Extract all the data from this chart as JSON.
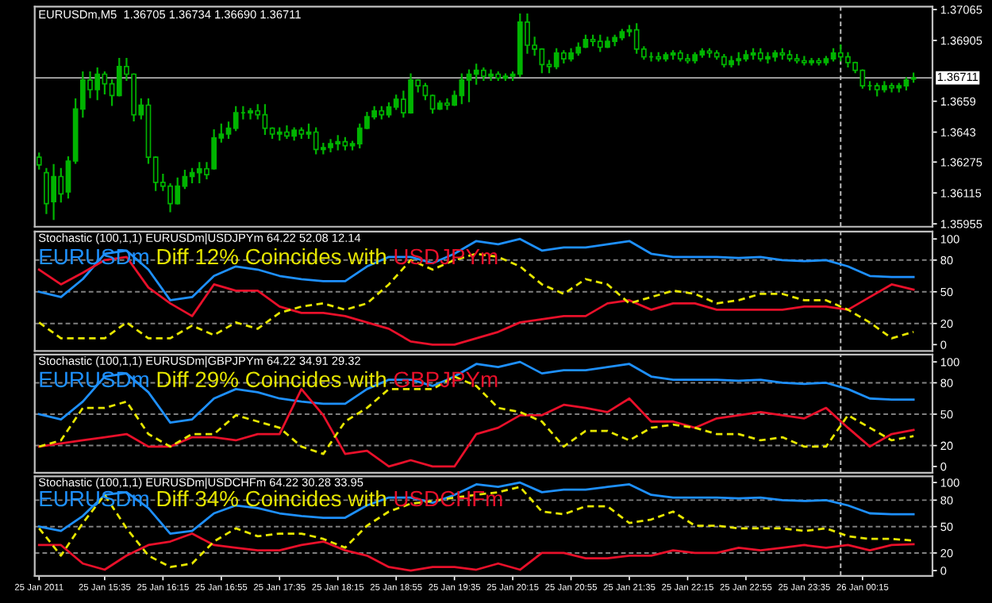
{
  "chart_data": [
    {
      "type": "candlestick",
      "title": "EURUSDm,M5  1.36705 1.36734 1.36690 1.36711",
      "color": "#00b400",
      "tick_labels": "y",
      "x": [
        "2011-01-25T14:50",
        "2011-01-25T14:55",
        "2011-01-25T15:00",
        "2011-01-25T15:05",
        "2011-01-25T15:10",
        "2011-01-25T15:15",
        "2011-01-25T15:20",
        "2011-01-25T15:25",
        "2011-01-25T15:30",
        "2011-01-25T15:35",
        "2011-01-25T15:40",
        "2011-01-25T15:45",
        "2011-01-25T15:50",
        "2011-01-25T15:55",
        "2011-01-25T16:00",
        "2011-01-25T16:05",
        "2011-01-25T16:10",
        "2011-01-25T16:15",
        "2011-01-25T16:20",
        "2011-01-25T16:25",
        "2011-01-25T16:30",
        "2011-01-25T16:35",
        "2011-01-25T16:40",
        "2011-01-25T16:45",
        "2011-01-25T16:50",
        "2011-01-25T16:55",
        "2011-01-25T17:00",
        "2011-01-25T17:05",
        "2011-01-25T17:10",
        "2011-01-25T17:15",
        "2011-01-25T17:20",
        "2011-01-25T17:25",
        "2011-01-25T17:30",
        "2011-01-25T17:35",
        "2011-01-25T17:40",
        "2011-01-25T17:45",
        "2011-01-25T17:50",
        "2011-01-25T17:55",
        "2011-01-25T18:00",
        "2011-01-25T18:05",
        "2011-01-25T18:10",
        "2011-01-25T18:15",
        "2011-01-25T18:20",
        "2011-01-25T18:25",
        "2011-01-25T18:30",
        "2011-01-25T18:35",
        "2011-01-25T18:40",
        "2011-01-25T18:45",
        "2011-01-25T18:50",
        "2011-01-25T18:55",
        "2011-01-25T19:00",
        "2011-01-25T19:05",
        "2011-01-25T19:10",
        "2011-01-25T19:15",
        "2011-01-25T19:20",
        "2011-01-25T19:25",
        "2011-01-25T19:30",
        "2011-01-25T19:35",
        "2011-01-25T19:40",
        "2011-01-25T19:45",
        "2011-01-25T19:50",
        "2011-01-25T19:55",
        "2011-01-25T20:00",
        "2011-01-25T20:05",
        "2011-01-25T20:10",
        "2011-01-25T20:15",
        "2011-01-25T20:20",
        "2011-01-25T20:25",
        "2011-01-25T20:30",
        "2011-01-25T20:35",
        "2011-01-25T20:40",
        "2011-01-25T20:45",
        "2011-01-25T20:50",
        "2011-01-25T20:55",
        "2011-01-25T21:00",
        "2011-01-25T21:05",
        "2011-01-25T21:10",
        "2011-01-25T21:15",
        "2011-01-25T21:20",
        "2011-01-25T21:25",
        "2011-01-25T21:30",
        "2011-01-25T21:35",
        "2011-01-25T21:40",
        "2011-01-25T21:45",
        "2011-01-25T21:50",
        "2011-01-25T21:55",
        "2011-01-25T22:00",
        "2011-01-25T22:05",
        "2011-01-25T22:10",
        "2011-01-25T22:15",
        "2011-01-25T22:20",
        "2011-01-25T22:25",
        "2011-01-25T22:30",
        "2011-01-25T22:35",
        "2011-01-25T22:40",
        "2011-01-25T22:45",
        "2011-01-25T22:50",
        "2011-01-25T22:55",
        "2011-01-25T23:00",
        "2011-01-25T23:05",
        "2011-01-25T23:10",
        "2011-01-25T23:15",
        "2011-01-25T23:20",
        "2011-01-25T23:25",
        "2011-01-25T23:30",
        "2011-01-25T23:35",
        "2011-01-25T23:40",
        "2011-01-25T23:45",
        "2011-01-25T23:50",
        "2011-01-25T23:55",
        "2011-01-26T00:00",
        "2011-01-26T00:05",
        "2011-01-26T00:10",
        "2011-01-26T00:15",
        "2011-01-26T00:20",
        "2011-01-26T00:25",
        "2011-01-26T00:30",
        "2011-01-26T00:35",
        "2011-01-26T00:40",
        "2011-01-26T00:45",
        "2011-01-26T00:50"
      ],
      "ohlc": [
        [
          1.363,
          1.3632,
          1.3624,
          1.3626
        ],
        [
          1.3622,
          1.3624,
          1.3601,
          1.3606
        ],
        [
          1.3607,
          1.3626,
          1.3598,
          1.362
        ],
        [
          1.362,
          1.3624,
          1.3607,
          1.3611
        ],
        [
          1.3612,
          1.363,
          1.3609,
          1.3628
        ],
        [
          1.3628,
          1.366,
          1.3627,
          1.3655
        ],
        [
          1.3655,
          1.3674,
          1.3651,
          1.367
        ],
        [
          1.367,
          1.3674,
          1.3661,
          1.3665
        ],
        [
          1.3665,
          1.3676,
          1.366,
          1.3673
        ],
        [
          1.3673,
          1.3674,
          1.3663,
          1.3668
        ],
        [
          1.3668,
          1.367,
          1.3657,
          1.3662
        ],
        [
          1.3662,
          1.3681,
          1.3662,
          1.3677
        ],
        [
          1.3677,
          1.3681,
          1.367,
          1.3673
        ],
        [
          1.3673,
          1.3673,
          1.3649,
          1.3652
        ],
        [
          1.3652,
          1.366,
          1.365,
          1.3657
        ],
        [
          1.3657,
          1.366,
          1.3627,
          1.363
        ],
        [
          1.363,
          1.363,
          1.3613,
          1.3617
        ],
        [
          1.3617,
          1.3621,
          1.3613,
          1.3615
        ],
        [
          1.3615,
          1.3616,
          1.3602,
          1.3606
        ],
        [
          1.3606,
          1.3619,
          1.3606,
          1.3615
        ],
        [
          1.3615,
          1.3623,
          1.3614,
          1.362
        ],
        [
          1.362,
          1.3624,
          1.3617,
          1.3622
        ],
        [
          1.3622,
          1.3627,
          1.3617,
          1.3624
        ],
        [
          1.3624,
          1.3627,
          1.3619,
          1.3621
        ],
        [
          1.3624,
          1.3644,
          1.3624,
          1.364
        ],
        [
          1.364,
          1.3647,
          1.3638,
          1.3642
        ],
        [
          1.3642,
          1.3648,
          1.364,
          1.3645
        ],
        [
          1.3645,
          1.3656,
          1.3644,
          1.3653
        ],
        [
          1.3653,
          1.3656,
          1.365,
          1.3653
        ],
        [
          1.3653,
          1.3655,
          1.365,
          1.3654
        ],
        [
          1.3654,
          1.3657,
          1.365,
          1.3652
        ],
        [
          1.3652,
          1.3657,
          1.3642,
          1.3645
        ],
        [
          1.3645,
          1.3645,
          1.364,
          1.3642
        ],
        [
          1.3642,
          1.3645,
          1.3639,
          1.3643
        ],
        [
          1.3643,
          1.3646,
          1.364,
          1.3641
        ],
        [
          1.3641,
          1.3645,
          1.3639,
          1.3644
        ],
        [
          1.3644,
          1.3645,
          1.364,
          1.3642
        ],
        [
          1.3642,
          1.3647,
          1.364,
          1.3643
        ],
        [
          1.3643,
          1.3645,
          1.3632,
          1.3634
        ],
        [
          1.3634,
          1.3637,
          1.3632,
          1.3635
        ],
        [
          1.3635,
          1.3639,
          1.3633,
          1.3637
        ],
        [
          1.3637,
          1.3641,
          1.3634,
          1.3638
        ],
        [
          1.3638,
          1.364,
          1.3634,
          1.3636
        ],
        [
          1.3636,
          1.3638,
          1.3634,
          1.3637
        ],
        [
          1.3637,
          1.3647,
          1.3635,
          1.3645
        ],
        [
          1.3645,
          1.3653,
          1.3645,
          1.3651
        ],
        [
          1.3651,
          1.3656,
          1.365,
          1.3654
        ],
        [
          1.3654,
          1.3656,
          1.365,
          1.3652
        ],
        [
          1.3652,
          1.3658,
          1.3651,
          1.3656
        ],
        [
          1.3656,
          1.3662,
          1.3655,
          1.366
        ],
        [
          1.366,
          1.3664,
          1.3651,
          1.3653
        ],
        [
          1.3653,
          1.3673,
          1.3653,
          1.367
        ],
        [
          1.367,
          1.367,
          1.3664,
          1.3667
        ],
        [
          1.3667,
          1.3668,
          1.366,
          1.3662
        ],
        [
          1.3662,
          1.3662,
          1.3653,
          1.3655
        ],
        [
          1.3655,
          1.3659,
          1.3655,
          1.3658
        ],
        [
          1.3658,
          1.366,
          1.3655,
          1.3657
        ],
        [
          1.3657,
          1.3664,
          1.3657,
          1.3662
        ],
        [
          1.3662,
          1.3673,
          1.3658,
          1.367
        ],
        [
          1.367,
          1.3675,
          1.3659,
          1.3673
        ],
        [
          1.3673,
          1.3678,
          1.3668,
          1.3675
        ],
        [
          1.3675,
          1.3676,
          1.367,
          1.3672
        ],
        [
          1.3672,
          1.3675,
          1.367,
          1.3673
        ],
        [
          1.3673,
          1.3674,
          1.367,
          1.3671
        ],
        [
          1.3671,
          1.3673,
          1.367,
          1.3672
        ],
        [
          1.3672,
          1.3674,
          1.367,
          1.3673
        ],
        [
          1.3673,
          1.3704,
          1.3672,
          1.37
        ],
        [
          1.37,
          1.3704,
          1.3684,
          1.3688
        ],
        [
          1.3688,
          1.3692,
          1.3683,
          1.3686
        ],
        [
          1.3686,
          1.3686,
          1.3674,
          1.3678
        ],
        [
          1.3678,
          1.368,
          1.3674,
          1.3677
        ],
        [
          1.3677,
          1.3686,
          1.3676,
          1.3684
        ],
        [
          1.3684,
          1.3685,
          1.3679,
          1.3681
        ],
        [
          1.3681,
          1.3686,
          1.368,
          1.3684
        ],
        [
          1.3684,
          1.3689,
          1.3683,
          1.3687
        ],
        [
          1.3687,
          1.3693,
          1.3687,
          1.3691
        ],
        [
          1.3691,
          1.3693,
          1.3688,
          1.369
        ],
        [
          1.369,
          1.3693,
          1.3685,
          1.3687
        ],
        [
          1.3687,
          1.3692,
          1.3687,
          1.369
        ],
        [
          1.369,
          1.3693,
          1.3688,
          1.3692
        ],
        [
          1.3692,
          1.3696,
          1.3691,
          1.3695
        ],
        [
          1.3695,
          1.3698,
          1.3693,
          1.3696
        ],
        [
          1.3696,
          1.3699,
          1.3684,
          1.3686
        ],
        [
          1.3686,
          1.3687,
          1.3681,
          1.3682
        ],
        [
          1.3682,
          1.3684,
          1.368,
          1.3682
        ],
        [
          1.3682,
          1.3684,
          1.368,
          1.3681
        ],
        [
          1.3681,
          1.3684,
          1.368,
          1.3683
        ],
        [
          1.3683,
          1.3685,
          1.3681,
          1.3684
        ],
        [
          1.3684,
          1.3685,
          1.368,
          1.3681
        ],
        [
          1.3681,
          1.3683,
          1.3679,
          1.368
        ],
        [
          1.368,
          1.3684,
          1.3679,
          1.3683
        ],
        [
          1.3683,
          1.3686,
          1.3682,
          1.3685
        ],
        [
          1.3685,
          1.3686,
          1.3682,
          1.3684
        ],
        [
          1.3684,
          1.3685,
          1.3681,
          1.3682
        ],
        [
          1.3682,
          1.3683,
          1.3677,
          1.3678
        ],
        [
          1.3678,
          1.3682,
          1.3677,
          1.368
        ],
        [
          1.368,
          1.3684,
          1.3678,
          1.3681
        ],
        [
          1.3681,
          1.3685,
          1.368,
          1.3683
        ],
        [
          1.3683,
          1.3686,
          1.3681,
          1.3684
        ],
        [
          1.3684,
          1.3686,
          1.368,
          1.3681
        ],
        [
          1.3681,
          1.3684,
          1.3679,
          1.3682
        ],
        [
          1.3682,
          1.3685,
          1.368,
          1.3684
        ],
        [
          1.3684,
          1.3686,
          1.3681,
          1.3683
        ],
        [
          1.3683,
          1.3685,
          1.368,
          1.3681
        ],
        [
          1.3681,
          1.3683,
          1.3679,
          1.368
        ],
        [
          1.368,
          1.3682,
          1.3678,
          1.3679
        ],
        [
          1.3679,
          1.3681,
          1.3678,
          1.368
        ],
        [
          1.368,
          1.3681,
          1.3678,
          1.3679
        ],
        [
          1.3679,
          1.3682,
          1.3678,
          1.3681
        ],
        [
          1.3681,
          1.3686,
          1.368,
          1.3684
        ],
        [
          1.3684,
          1.3688,
          1.368,
          1.3682
        ],
        [
          1.3682,
          1.3684,
          1.3677,
          1.3679
        ],
        [
          1.3679,
          1.3679,
          1.3674,
          1.3675
        ],
        [
          1.3675,
          1.3675,
          1.3666,
          1.3667
        ],
        [
          1.3667,
          1.3669,
          1.3665,
          1.3667
        ],
        [
          1.3667,
          1.3668,
          1.3662,
          1.3665
        ],
        [
          1.3665,
          1.3669,
          1.3664,
          1.3667
        ],
        [
          1.3667,
          1.3668,
          1.3664,
          1.3666
        ],
        [
          1.3666,
          1.3668,
          1.3664,
          1.3667
        ],
        [
          1.3667,
          1.3671,
          1.3665,
          1.367
        ],
        [
          1.36705,
          1.36734,
          1.3669,
          1.36711
        ]
      ],
      "xlim": [
        "2011-01-25T14:47",
        "2011-01-26T01:03"
      ],
      "ylim": [
        1.3594,
        1.3708
      ],
      "yticks": [
        1.37065,
        1.36905,
        1.3659,
        1.3643,
        1.36275,
        1.36115,
        1.35955
      ],
      "ref_lines": [
        {
          "axis": "y",
          "value": 1.36711,
          "label": "1.36711",
          "color": "#b0b0b0"
        },
        {
          "axis": "x",
          "value": "2011-01-26T00:00",
          "color": "#c0c0c0",
          "line_style": "dashed"
        }
      ]
    },
    {
      "type": "line",
      "title": "Stochastic (100,1,1) EURUSDm|USDJPYm 64.22 52.08 12.14",
      "subtitle": "Diff 12% Coincides with",
      "tick_labels": "y",
      "x": [
        "2011-01-25T14:50",
        "2011-01-25T15:05",
        "2011-01-25T15:20",
        "2011-01-25T15:35",
        "2011-01-25T15:50",
        "2011-01-25T16:05",
        "2011-01-25T16:20",
        "2011-01-25T16:35",
        "2011-01-25T16:50",
        "2011-01-25T17:05",
        "2011-01-25T17:20",
        "2011-01-25T17:35",
        "2011-01-25T17:50",
        "2011-01-25T18:05",
        "2011-01-25T18:20",
        "2011-01-25T18:35",
        "2011-01-25T18:50",
        "2011-01-25T19:05",
        "2011-01-25T19:20",
        "2011-01-25T19:35",
        "2011-01-25T19:50",
        "2011-01-25T20:05",
        "2011-01-25T20:20",
        "2011-01-25T20:35",
        "2011-01-25T20:50",
        "2011-01-25T21:05",
        "2011-01-25T21:20",
        "2011-01-25T21:35",
        "2011-01-25T21:50",
        "2011-01-25T22:05",
        "2011-01-25T22:20",
        "2011-01-25T22:35",
        "2011-01-25T22:50",
        "2011-01-25T23:05",
        "2011-01-25T23:20",
        "2011-01-25T23:35",
        "2011-01-25T23:50",
        "2011-01-26T00:05",
        "2011-01-26T00:20",
        "2011-01-26T00:35",
        "2011-01-26T00:50"
      ],
      "series": [
        {
          "name": "EURUSDm",
          "color": "#1e90ff",
          "line_style": "solid",
          "values": [
            50,
            45,
            62,
            86,
            89,
            71,
            42,
            45,
            65,
            74,
            71,
            65,
            62,
            60,
            60,
            74,
            83,
            83,
            77,
            86,
            98,
            95,
            100,
            89,
            92,
            92,
            95,
            98,
            86,
            83,
            83,
            83,
            82,
            83,
            80,
            79,
            80,
            74,
            65,
            64,
            64
          ]
        },
        {
          "name": "USDJPYm",
          "color": "#e8102a",
          "line_style": "solid",
          "values": [
            71,
            57,
            68,
            80,
            83,
            54,
            39,
            27,
            57,
            51,
            51,
            36,
            30,
            30,
            27,
            21,
            15,
            3,
            0,
            0,
            6,
            12,
            21,
            24,
            27,
            27,
            39,
            42,
            33,
            39,
            39,
            33,
            33,
            33,
            33,
            36,
            36,
            33,
            45,
            57,
            52
          ]
        },
        {
          "color": "#e6e600",
          "line_style": "dashed",
          "values": [
            21,
            6,
            6,
            6,
            21,
            6,
            6,
            18,
            9,
            21,
            15,
            30,
            36,
            39,
            33,
            39,
            57,
            80,
            71,
            80,
            86,
            83,
            74,
            57,
            48,
            62,
            57,
            39,
            45,
            51,
            48,
            39,
            42,
            48,
            48,
            42,
            42,
            33,
            21,
            6,
            12
          ]
        }
      ],
      "xlim": [
        "2011-01-25T14:47",
        "2011-01-26T01:03"
      ],
      "ylim": [
        -6,
        107
      ],
      "yticks": [
        0,
        20,
        50,
        80,
        100
      ],
      "ref_lines": [
        {
          "axis": "y",
          "value": 20,
          "color": "#808080",
          "line_style": "dashed"
        },
        {
          "axis": "y",
          "value": 50,
          "color": "#808080",
          "line_style": "dashed"
        },
        {
          "axis": "y",
          "value": 80,
          "color": "#808080",
          "line_style": "dashed"
        },
        {
          "axis": "x",
          "value": "2011-01-26T00:00",
          "color": "#c0c0c0",
          "line_style": "dashed"
        }
      ]
    },
    {
      "type": "line",
      "title": "Stochastic (100,1,1) EURUSDm|GBPJPYm 64.22 34.91 29.32",
      "subtitle": "Diff 29% Coincides with",
      "tick_labels": "y",
      "x": [
        "2011-01-25T14:50",
        "2011-01-25T15:05",
        "2011-01-25T15:20",
        "2011-01-25T15:35",
        "2011-01-25T15:50",
        "2011-01-25T16:05",
        "2011-01-25T16:20",
        "2011-01-25T16:35",
        "2011-01-25T16:50",
        "2011-01-25T17:05",
        "2011-01-25T17:20",
        "2011-01-25T17:35",
        "2011-01-25T17:50",
        "2011-01-25T18:05",
        "2011-01-25T18:20",
        "2011-01-25T18:35",
        "2011-01-25T18:50",
        "2011-01-25T19:05",
        "2011-01-25T19:20",
        "2011-01-25T19:35",
        "2011-01-25T19:50",
        "2011-01-25T20:05",
        "2011-01-25T20:20",
        "2011-01-25T20:35",
        "2011-01-25T20:50",
        "2011-01-25T21:05",
        "2011-01-25T21:20",
        "2011-01-25T21:35",
        "2011-01-25T21:50",
        "2011-01-25T22:05",
        "2011-01-25T22:20",
        "2011-01-25T22:35",
        "2011-01-25T22:50",
        "2011-01-25T23:05",
        "2011-01-25T23:20",
        "2011-01-25T23:35",
        "2011-01-25T23:50",
        "2011-01-26T00:05",
        "2011-01-26T00:20",
        "2011-01-26T00:35",
        "2011-01-26T00:50"
      ],
      "series": [
        {
          "name": "EURUSDm",
          "color": "#1e90ff",
          "line_style": "solid",
          "values": [
            50,
            45,
            62,
            86,
            89,
            71,
            42,
            45,
            65,
            74,
            71,
            65,
            62,
            60,
            60,
            74,
            83,
            83,
            77,
            86,
            98,
            95,
            100,
            89,
            92,
            92,
            95,
            98,
            86,
            83,
            83,
            83,
            82,
            83,
            80,
            79,
            80,
            74,
            65,
            64,
            64
          ]
        },
        {
          "name": "GBPJPYm",
          "color": "#e8102a",
          "line_style": "solid",
          "values": [
            19,
            22,
            25,
            28,
            31,
            19,
            19,
            28,
            28,
            25,
            31,
            31,
            74,
            49,
            12,
            15,
            0,
            6,
            0,
            0,
            31,
            37,
            49,
            49,
            59,
            56,
            52,
            65,
            43,
            43,
            37,
            46,
            49,
            52,
            49,
            46,
            56,
            37,
            19,
            31,
            35
          ]
        },
        {
          "color": "#e6e600",
          "line_style": "dashed",
          "values": [
            19,
            25,
            56,
            56,
            62,
            31,
            19,
            31,
            31,
            49,
            43,
            37,
            19,
            12,
            43,
            56,
            74,
            74,
            74,
            86,
            77,
            56,
            52,
            43,
            19,
            34,
            34,
            25,
            37,
            40,
            37,
            31,
            31,
            25,
            28,
            19,
            19,
            49,
            37,
            25,
            29
          ]
        }
      ],
      "xlim": [
        "2011-01-25T14:47",
        "2011-01-26T01:03"
      ],
      "ylim": [
        -6,
        107
      ],
      "yticks": [
        0,
        20,
        50,
        80,
        100
      ],
      "ref_lines": [
        {
          "axis": "y",
          "value": 20,
          "color": "#808080",
          "line_style": "dashed"
        },
        {
          "axis": "y",
          "value": 50,
          "color": "#808080",
          "line_style": "dashed"
        },
        {
          "axis": "y",
          "value": 80,
          "color": "#808080",
          "line_style": "dashed"
        },
        {
          "axis": "x",
          "value": "2011-01-26T00:00",
          "color": "#c0c0c0",
          "line_style": "dashed"
        }
      ]
    },
    {
      "type": "line",
      "title": "Stochastic (100,1,1) EURUSDm|USDCHFm 64.22 30.28 33.95",
      "subtitle": "Diff 34% Coincides with",
      "x": [
        "2011-01-25T14:50",
        "2011-01-25T15:05",
        "2011-01-25T15:20",
        "2011-01-25T15:35",
        "2011-01-25T15:50",
        "2011-01-25T16:05",
        "2011-01-25T16:20",
        "2011-01-25T16:35",
        "2011-01-25T16:50",
        "2011-01-25T17:05",
        "2011-01-25T17:20",
        "2011-01-25T17:35",
        "2011-01-25T17:50",
        "2011-01-25T18:05",
        "2011-01-25T18:20",
        "2011-01-25T18:35",
        "2011-01-25T18:50",
        "2011-01-25T19:05",
        "2011-01-25T19:20",
        "2011-01-25T19:35",
        "2011-01-25T19:50",
        "2011-01-25T20:05",
        "2011-01-25T20:20",
        "2011-01-25T20:35",
        "2011-01-25T20:50",
        "2011-01-25T21:05",
        "2011-01-25T21:20",
        "2011-01-25T21:35",
        "2011-01-25T21:50",
        "2011-01-25T22:05",
        "2011-01-25T22:20",
        "2011-01-25T22:35",
        "2011-01-25T22:50",
        "2011-01-25T23:05",
        "2011-01-25T23:20",
        "2011-01-25T23:35",
        "2011-01-25T23:50",
        "2011-01-26T00:05",
        "2011-01-26T00:20",
        "2011-01-26T00:35",
        "2011-01-26T00:50"
      ],
      "series": [
        {
          "name": "EURUSDm",
          "color": "#1e90ff",
          "line_style": "solid",
          "values": [
            50,
            45,
            62,
            86,
            89,
            71,
            42,
            45,
            65,
            74,
            71,
            65,
            62,
            60,
            60,
            74,
            83,
            83,
            77,
            86,
            98,
            95,
            100,
            89,
            92,
            92,
            95,
            98,
            86,
            83,
            83,
            83,
            82,
            83,
            80,
            79,
            80,
            74,
            65,
            64,
            64
          ]
        },
        {
          "name": "USDCHFm",
          "color": "#e8102a",
          "line_style": "solid",
          "values": [
            29,
            29,
            8,
            1,
            17,
            29,
            33,
            42,
            29,
            26,
            23,
            23,
            29,
            33,
            23,
            17,
            4,
            0,
            4,
            4,
            1,
            8,
            1,
            20,
            20,
            14,
            14,
            17,
            17,
            23,
            20,
            20,
            26,
            23,
            26,
            29,
            26,
            29,
            23,
            29,
            30
          ]
        },
        {
          "color": "#e6e600",
          "line_style": "dashed",
          "values": [
            48,
            17,
            54,
            86,
            48,
            17,
            4,
            8,
            33,
            48,
            39,
            42,
            42,
            36,
            26,
            51,
            67,
            76,
            79,
            83,
            86,
            89,
            95,
            67,
            64,
            73,
            73,
            54,
            58,
            67,
            51,
            51,
            48,
            48,
            48,
            45,
            48,
            39,
            36,
            36,
            34
          ]
        }
      ],
      "xlim": [
        "2011-01-25T14:47",
        "2011-01-26T01:03"
      ],
      "ylim": [
        -6,
        107
      ],
      "yticks": [
        0,
        20,
        50,
        80,
        100
      ],
      "xticks": [
        {
          "value": "2011-01-25T14:50",
          "label": "25 Jan 2011"
        },
        {
          "value": "2011-01-25T15:35",
          "label": "25 Jan 15:35"
        },
        {
          "value": "2011-01-25T16:15",
          "label": "25 Jan 16:15"
        },
        {
          "value": "2011-01-25T16:55",
          "label": "25 Jan 16:55"
        },
        {
          "value": "2011-01-25T17:35",
          "label": "25 Jan 17:35"
        },
        {
          "value": "2011-01-25T18:15",
          "label": "25 Jan 18:15"
        },
        {
          "value": "2011-01-25T18:55",
          "label": "25 Jan 18:55"
        },
        {
          "value": "2011-01-25T19:35",
          "label": "25 Jan 19:35"
        },
        {
          "value": "2011-01-25T20:15",
          "label": "25 Jan 20:15"
        },
        {
          "value": "2011-01-25T20:55",
          "label": "25 Jan 20:55"
        },
        {
          "value": "2011-01-25T21:35",
          "label": "25 Jan 21:35"
        },
        {
          "value": "2011-01-25T22:15",
          "label": "25 Jan 22:15"
        },
        {
          "value": "2011-01-25T22:55",
          "label": "25 Jan 22:55"
        },
        {
          "value": "2011-01-25T23:35",
          "label": "25 Jan 23:35"
        },
        {
          "value": "2011-01-26T00:15",
          "label": "26 Jan 00:15"
        }
      ],
      "ref_lines": [
        {
          "axis": "y",
          "value": 20,
          "color": "#808080",
          "line_style": "dashed"
        },
        {
          "axis": "y",
          "value": 50,
          "color": "#808080",
          "line_style": "dashed"
        },
        {
          "axis": "y",
          "value": 80,
          "color": "#808080",
          "line_style": "dashed"
        },
        {
          "axis": "x",
          "value": "2011-01-26T00:00",
          "color": "#c0c0c0",
          "line_style": "dashed"
        }
      ]
    }
  ]
}
